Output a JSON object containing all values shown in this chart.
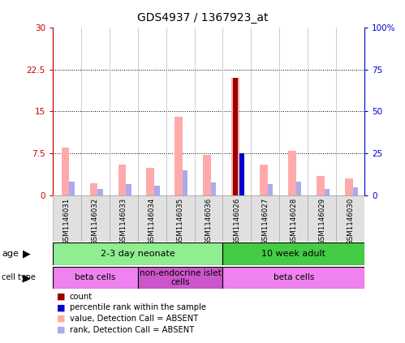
{
  "title": "GDS4937 / 1367923_at",
  "samples": [
    "GSM1146031",
    "GSM1146032",
    "GSM1146033",
    "GSM1146034",
    "GSM1146035",
    "GSM1146036",
    "GSM1146026",
    "GSM1146027",
    "GSM1146028",
    "GSM1146029",
    "GSM1146030"
  ],
  "value_absent": [
    8.5,
    2.2,
    5.5,
    5.0,
    14.0,
    7.2,
    21.0,
    5.5,
    8.0,
    3.5,
    3.0
  ],
  "rank_absent": [
    2.5,
    1.2,
    2.0,
    1.8,
    4.5,
    2.3,
    0.0,
    2.0,
    2.5,
    1.2,
    1.5
  ],
  "count_value": [
    0,
    0,
    0,
    0,
    0,
    0,
    21.0,
    0,
    0,
    0,
    0
  ],
  "percentile_rank": [
    0,
    0,
    0,
    0,
    0,
    0,
    7.5,
    0,
    0,
    0,
    0
  ],
  "ylim_left": [
    0,
    30
  ],
  "ylim_right": [
    0,
    100
  ],
  "yticks_left": [
    0,
    7.5,
    15,
    22.5,
    30
  ],
  "yticks_right": [
    0,
    25,
    50,
    75,
    100
  ],
  "ytick_labels_left": [
    "0",
    "7.5",
    "15",
    "22.5",
    "30"
  ],
  "ytick_labels_right": [
    "0",
    "25",
    "50",
    "75",
    "100%"
  ],
  "age_groups": [
    {
      "label": "2-3 day neonate",
      "start": 0,
      "end": 6,
      "color": "#90ee90"
    },
    {
      "label": "10 week adult",
      "start": 6,
      "end": 11,
      "color": "#44cc44"
    }
  ],
  "cell_type_groups": [
    {
      "label": "beta cells",
      "start": 0,
      "end": 3,
      "color": "#ee82ee"
    },
    {
      "label": "non-endocrine islet\ncells",
      "start": 3,
      "end": 6,
      "color": "#cc55cc"
    },
    {
      "label": "beta cells",
      "start": 6,
      "end": 11,
      "color": "#ee82ee"
    }
  ],
  "color_count": "#990000",
  "color_percentile": "#0000cc",
  "color_value_absent": "#ffaaaa",
  "color_rank_absent": "#aaaaee",
  "background_color": "#ffffff",
  "left_axis_color": "#cc0000",
  "right_axis_color": "#0000cc"
}
